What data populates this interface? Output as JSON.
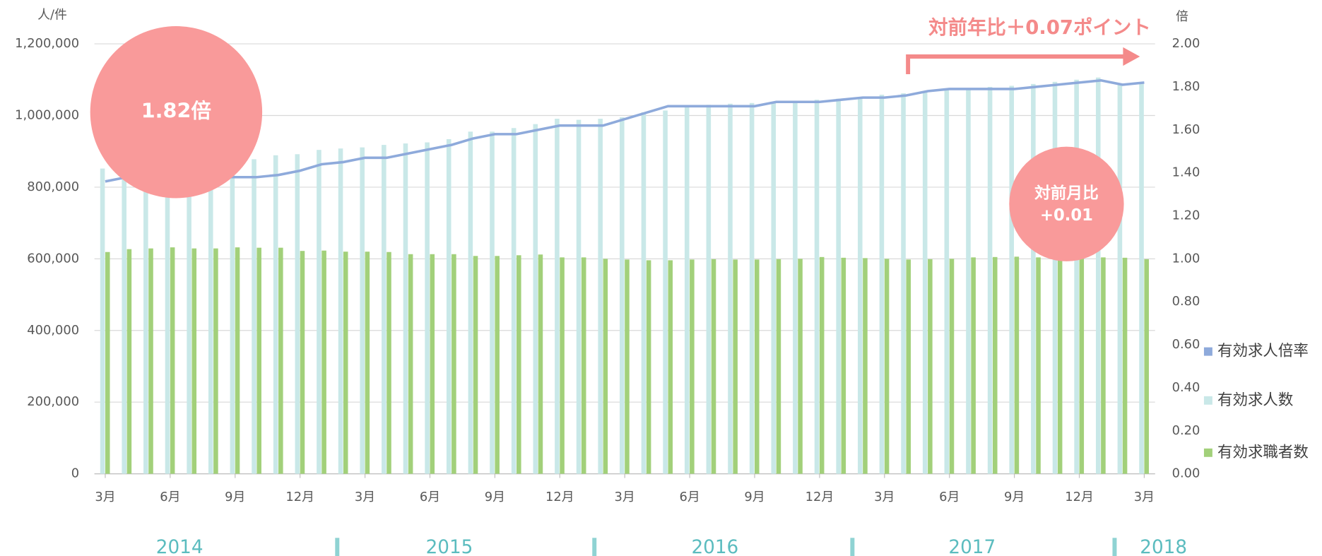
{
  "chart_data": {
    "type": "bar-line",
    "y_axis_label": "人/件",
    "y2_axis_label": "倍",
    "categories": [
      "3月",
      null,
      null,
      "6月",
      null,
      null,
      "9月",
      null,
      null,
      "12月",
      null,
      null,
      "3月",
      null,
      null,
      "6月",
      null,
      null,
      "9月",
      null,
      null,
      "12月",
      null,
      null,
      "3月",
      null,
      null,
      "6月",
      null,
      null,
      "9月",
      null,
      null,
      "12月",
      null,
      null,
      "3月",
      null,
      null,
      "6月",
      null,
      null,
      "9月",
      null,
      null,
      "12月",
      null,
      null,
      "3月"
    ],
    "years": [
      "2014",
      "2015",
      "2016",
      "2017",
      "2018"
    ],
    "series": [
      {
        "name": "有効求人倍率",
        "type": "line",
        "axis": "y2",
        "color": "#8eaadb",
        "values": [
          1.36,
          1.38,
          1.38,
          1.38,
          1.38,
          1.38,
          1.38,
          1.38,
          1.39,
          1.41,
          1.44,
          1.45,
          1.47,
          1.47,
          1.49,
          1.51,
          1.53,
          1.56,
          1.58,
          1.58,
          1.6,
          1.62,
          1.62,
          1.62,
          1.65,
          1.68,
          1.71,
          1.71,
          1.71,
          1.71,
          1.71,
          1.73,
          1.73,
          1.73,
          1.74,
          1.75,
          1.75,
          1.76,
          1.78,
          1.79,
          1.79,
          1.79,
          1.79,
          1.8,
          1.81,
          1.82,
          1.83,
          1.81,
          1.82
        ]
      },
      {
        "name": "有効求人数",
        "type": "bar",
        "color": "#c9e8e8",
        "values": [
          852000,
          845000,
          848000,
          855000,
          862000,
          868000,
          873000,
          878000,
          889000,
          892000,
          904000,
          908000,
          911000,
          918000,
          922000,
          925000,
          934000,
          955000,
          955000,
          965000,
          976000,
          991000,
          988000,
          991000,
          995000,
          1009000,
          1014000,
          1024000,
          1030000,
          1033000,
          1035000,
          1038000,
          1040000,
          1044000,
          1047000,
          1052000,
          1058000,
          1062000,
          1066000,
          1071000,
          1075000,
          1080000,
          1083000,
          1088000,
          1094000,
          1100000,
          1106000,
          1087000,
          1092000
        ]
      },
      {
        "name": "有効求職者数",
        "type": "bar",
        "color": "#a2d07a",
        "values": [
          619000,
          627000,
          629000,
          632000,
          629000,
          629000,
          632000,
          631000,
          631000,
          622000,
          623000,
          620000,
          620000,
          619000,
          613000,
          613000,
          613000,
          608000,
          608000,
          610000,
          612000,
          604000,
          604000,
          600000,
          598000,
          596000,
          596000,
          598000,
          599000,
          598000,
          598000,
          599000,
          600000,
          605000,
          603000,
          602000,
          600000,
          598000,
          599000,
          600000,
          604000,
          605000,
          606000,
          604000,
          605000,
          606000,
          604000,
          603000,
          599000
        ]
      }
    ],
    "ylim": [
      0,
      1200000
    ],
    "yticks": [
      0,
      {
        "value": 200000,
        "label": "200,000"
      },
      {
        "value": 400000,
        "label": "400,000"
      },
      {
        "value": 600000,
        "label": "600,000"
      },
      {
        "value": 800000,
        "label": "800,000"
      },
      {
        "value": 1000000,
        "label": "1,000,000"
      },
      {
        "value": 1200000,
        "label": "1,200,000"
      }
    ],
    "y2lim": [
      0,
      2
    ],
    "y2ticks": [
      {
        "value": 0,
        "label": "0.00"
      },
      {
        "value": 0.2,
        "label": "0.20"
      },
      {
        "value": 0.4,
        "label": "0.40"
      },
      {
        "value": 0.6,
        "label": "0.60"
      },
      {
        "value": 0.8,
        "label": "0.80"
      },
      {
        "value": 1,
        "label": "1.00"
      },
      {
        "value": 1.2,
        "label": "1.20"
      },
      {
        "value": 1.4,
        "label": "1.40"
      },
      {
        "value": 1.6,
        "label": "1.60"
      },
      {
        "value": 1.8,
        "label": "1.80"
      },
      {
        "value": 2,
        "label": "2.00"
      }
    ],
    "grid": true,
    "legend": "right",
    "annotations": [
      "1.82倍",
      "対前月比",
      "+0.01",
      "対前年比＋0.07ポイント"
    ]
  }
}
